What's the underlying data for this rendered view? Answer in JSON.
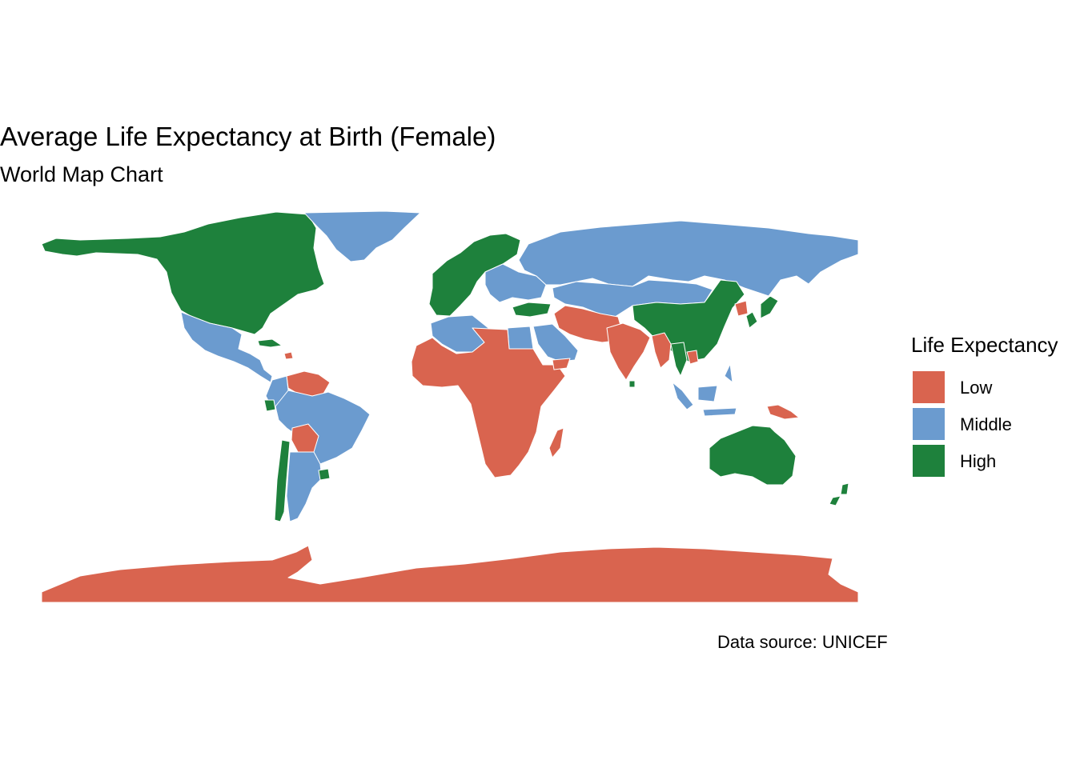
{
  "title": "Average Life Expectancy at Birth (Female)",
  "subtitle": "World Map Chart",
  "caption": "Data source: UNICEF",
  "legend": {
    "title": "Life Expectancy",
    "items": [
      {
        "label": "Low",
        "color": "#d9644f"
      },
      {
        "label": "Middle",
        "color": "#6b9bcf"
      },
      {
        "label": "High",
        "color": "#1e813c"
      }
    ]
  },
  "chart_data": {
    "type": "choropleth",
    "projection": "equirectangular",
    "categories": [
      "Low",
      "Middle",
      "High"
    ],
    "regions": {
      "North America (Canada, USA, Alaska)": "High",
      "Greenland": "Middle",
      "Mexico & Central America": "Middle",
      "Cuba": "High",
      "Haiti": "Low",
      "Venezuela & Guyana": "Low",
      "Colombia": "Middle",
      "Ecuador": "High",
      "Peru & Brazil": "Middle",
      "Bolivia": "Low",
      "Chile": "High",
      "Argentina": "Middle",
      "Uruguay": "High",
      "Western Europe": "High",
      "Eastern Europe & Balkans": "Middle",
      "Russia": "Middle",
      "Turkey": "High",
      "Central Asia & Mongolia": "Middle",
      "China": "High",
      "Japan & South Korea": "High",
      "North Korea": "Low",
      "North Africa (Morocco, Algeria, Egypt)": "Middle",
      "Libya & Sub-Saharan Africa": "Low",
      "Arabian Peninsula": "Middle",
      "Yemen": "Low",
      "Iran, Afghanistan, Pakistan": "Low",
      "India": "Low",
      "Sri Lanka": "High",
      "Myanmar": "Low",
      "Thailand": "High",
      "Cambodia": "Low",
      "Southeast Asia islands": "Middle",
      "Papua New Guinea": "Low",
      "Madagascar": "Low",
      "Australia": "High",
      "New Zealand": "High",
      "Antarctica": "Low"
    }
  }
}
